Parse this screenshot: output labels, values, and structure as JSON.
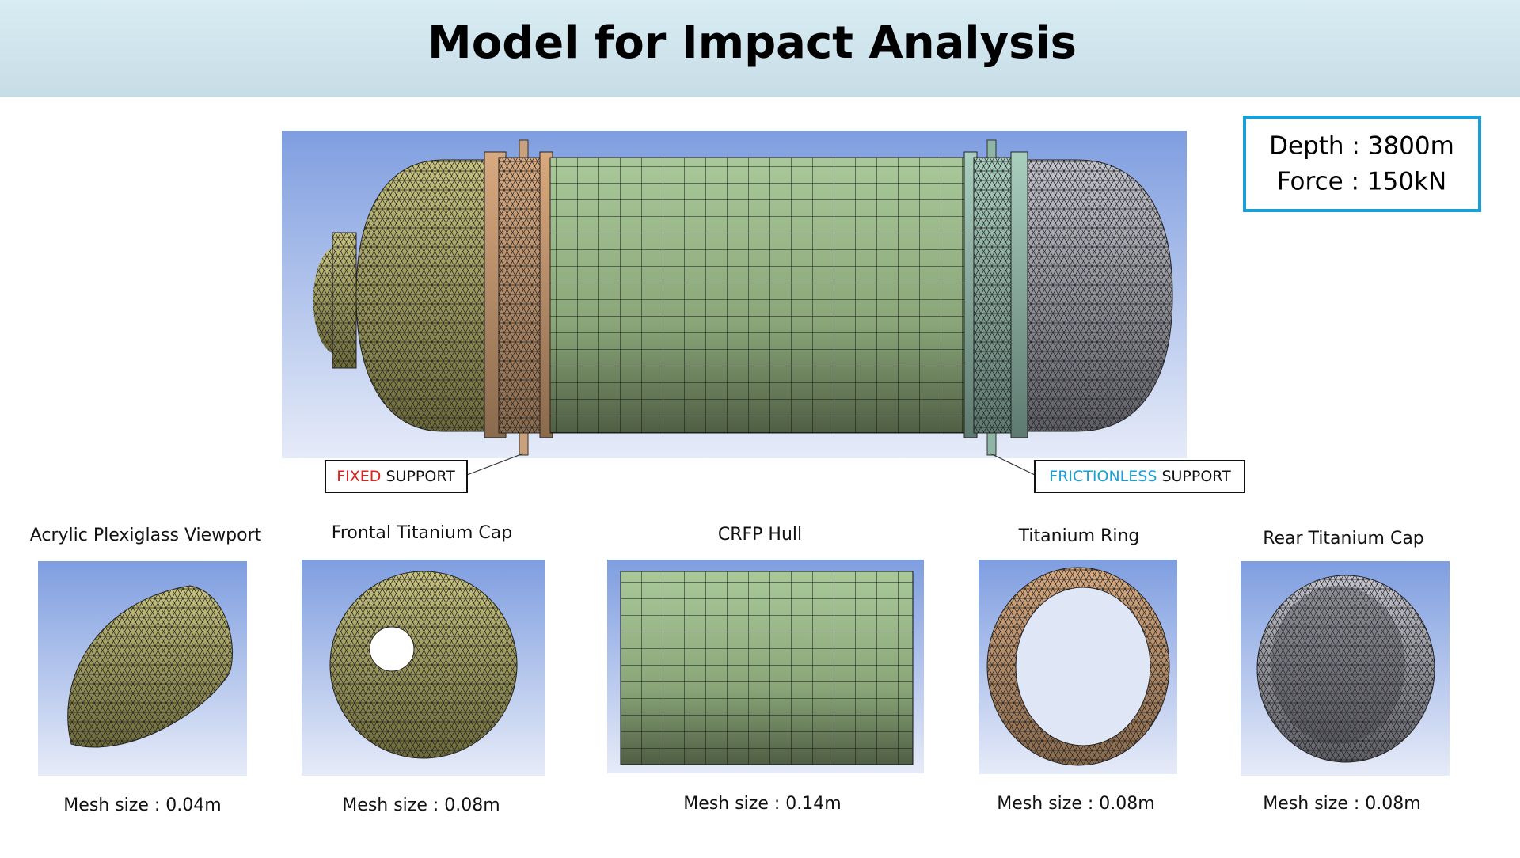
{
  "header": {
    "title": "Model for Impact Analysis"
  },
  "info": {
    "lines": [
      "Depth : 3800m",
      "Force : 150kN"
    ]
  },
  "callouts": [
    {
      "keyword": "FIXED",
      "label": "SUPPORT"
    },
    {
      "keyword": "FRICTIONLESS",
      "label": "SUPPORT"
    }
  ],
  "components": [
    {
      "name": "Acrylic Plexiglass Viewport",
      "mesh": "Mesh size : 0.04m"
    },
    {
      "name": "Frontal Titanium Cap",
      "mesh": "Mesh size : 0.08m"
    },
    {
      "name": "CRFP Hull",
      "mesh": "Mesh size : 0.14m"
    },
    {
      "name": "Titanium Ring",
      "mesh": "Mesh size : 0.08m"
    },
    {
      "name": "Rear Titanium Cap",
      "mesh": "Mesh size : 0.08m"
    }
  ]
}
